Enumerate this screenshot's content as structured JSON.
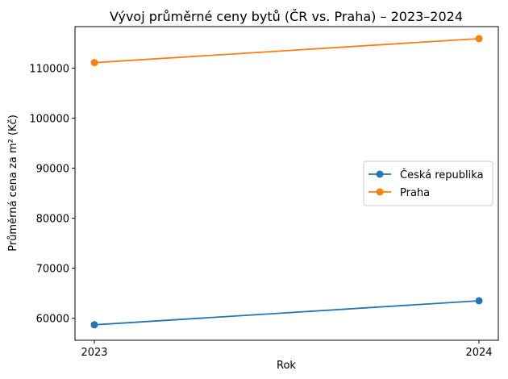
{
  "chart_data": {
    "type": "line",
    "title": "Vývoj průměrné ceny bytů (ČR vs. Praha) – 2023–2024",
    "xlabel": "Rok",
    "ylabel": "Průměrná cena za m² (Kč)",
    "x": [
      2023,
      2024
    ],
    "x_tick_labels": [
      "2023",
      "2024"
    ],
    "y_ticks": [
      60000,
      70000,
      80000,
      90000,
      100000,
      110000
    ],
    "y_tick_labels": [
      "60000",
      "70000",
      "80000",
      "90000",
      "100000",
      "110000"
    ],
    "ylim": [
      55600,
      118300
    ],
    "grid": false,
    "legend_position": "center right",
    "series": [
      {
        "name": "Česká republika",
        "color": "#1f77b4",
        "marker": "circle",
        "values": [
          58700,
          63500
        ]
      },
      {
        "name": "Praha",
        "color": "#ff7f0e",
        "marker": "circle",
        "values": [
          111100,
          115900
        ]
      }
    ]
  }
}
